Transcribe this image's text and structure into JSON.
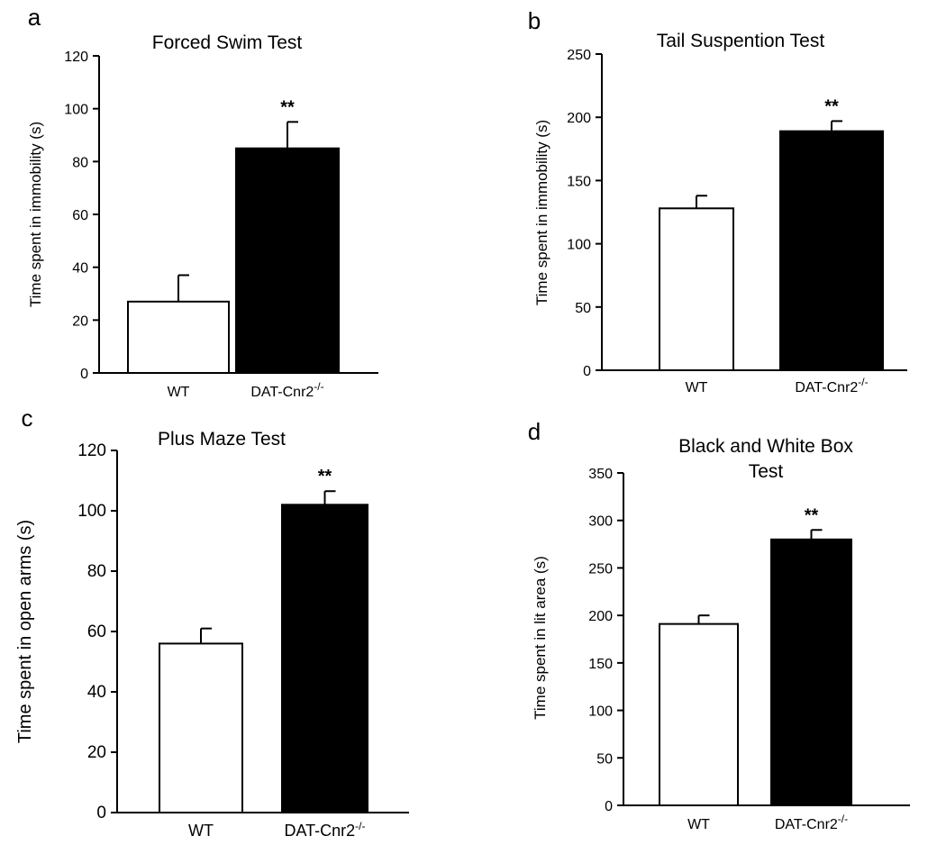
{
  "chart_data": [
    {
      "panel": "a",
      "type": "bar",
      "title": "Forced Swim Test",
      "xlabel": "",
      "ylabel": "Time spent in immobility (s)",
      "categories": [
        "WT",
        "DAT-Cnr2"
      ],
      "category_superscripts": [
        "",
        "-/-"
      ],
      "values": [
        27,
        85
      ],
      "errors": [
        10,
        10
      ],
      "bar_colors": [
        "#ffffff",
        "#000000"
      ],
      "annotations": [
        "",
        "**"
      ],
      "ylim": [
        0,
        120
      ],
      "yticks": [
        0,
        20,
        40,
        60,
        80,
        100,
        120
      ],
      "grid": false
    },
    {
      "panel": "b",
      "type": "bar",
      "title": "Tail Suspention Test",
      "xlabel": "",
      "ylabel": "Time spent in immobility (s)",
      "categories": [
        "WT",
        "DAT-Cnr2"
      ],
      "category_superscripts": [
        "",
        "-/-"
      ],
      "values": [
        128,
        189
      ],
      "errors": [
        10,
        8
      ],
      "bar_colors": [
        "#ffffff",
        "#000000"
      ],
      "annotations": [
        "",
        "**"
      ],
      "ylim": [
        0,
        250
      ],
      "yticks": [
        0,
        50,
        100,
        150,
        200,
        250
      ],
      "grid": false
    },
    {
      "panel": "c",
      "type": "bar",
      "title": "Plus Maze Test",
      "xlabel": "",
      "ylabel": "Time spent in open arms (s)",
      "categories": [
        "WT",
        "DAT-Cnr2"
      ],
      "category_superscripts": [
        "",
        "-/-"
      ],
      "values": [
        56,
        102
      ],
      "errors": [
        5,
        4.5
      ],
      "bar_colors": [
        "#ffffff",
        "#000000"
      ],
      "annotations": [
        "",
        "**"
      ],
      "ylim": [
        0,
        120
      ],
      "yticks": [
        0,
        20,
        40,
        60,
        80,
        100,
        120
      ],
      "grid": false
    },
    {
      "panel": "d",
      "type": "bar",
      "title": "Black and White Box Test",
      "title_lines": [
        "Black and White Box",
        "Test"
      ],
      "xlabel": "",
      "ylabel": "Time spent in lit area (s)",
      "categories": [
        "WT",
        "DAT-Cnr2"
      ],
      "category_superscripts": [
        "",
        "-/-"
      ],
      "values": [
        191,
        280
      ],
      "errors": [
        9,
        10
      ],
      "bar_colors": [
        "#ffffff",
        "#000000"
      ],
      "annotations": [
        "",
        "**"
      ],
      "ylim": [
        0,
        350
      ],
      "yticks": [
        0,
        50,
        100,
        150,
        200,
        250,
        300,
        350
      ],
      "grid": false
    }
  ]
}
